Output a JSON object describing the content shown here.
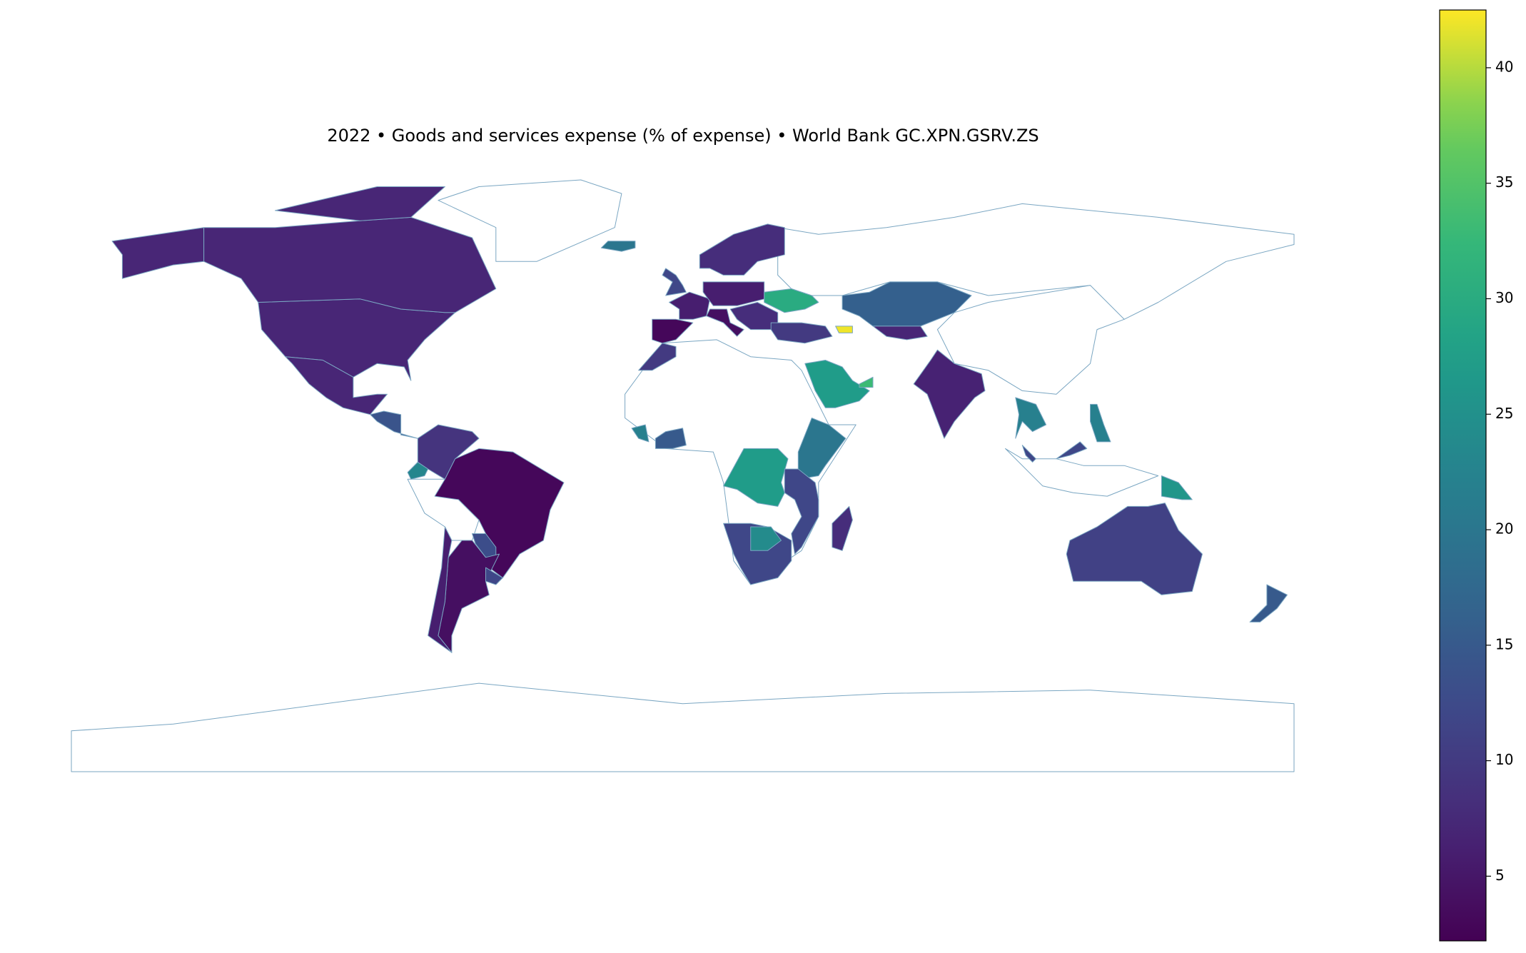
{
  "chart_data": {
    "type": "choropleth",
    "title": "2022 • Goods and services expense (% of expense) • World Bank GC.XPN.GSRV.ZS",
    "colormap": "viridis",
    "values": [
      7,
      7,
      7,
      7,
      14,
      9,
      23,
      3,
      13,
      4,
      6,
      12,
      20,
      8,
      12,
      3,
      6,
      6,
      4,
      8,
      30,
      10,
      42,
      16,
      7,
      27,
      33,
      6.5,
      22,
      22,
      12,
      26,
      11,
      15,
      10,
      15,
      22,
      27,
      20,
      12,
      12,
      24,
      8
    ],
    "colorbar": {
      "lim": [
        2.2,
        42.5
      ],
      "ticks": [
        5,
        10,
        15,
        20,
        25,
        30,
        35,
        40
      ]
    }
  }
}
